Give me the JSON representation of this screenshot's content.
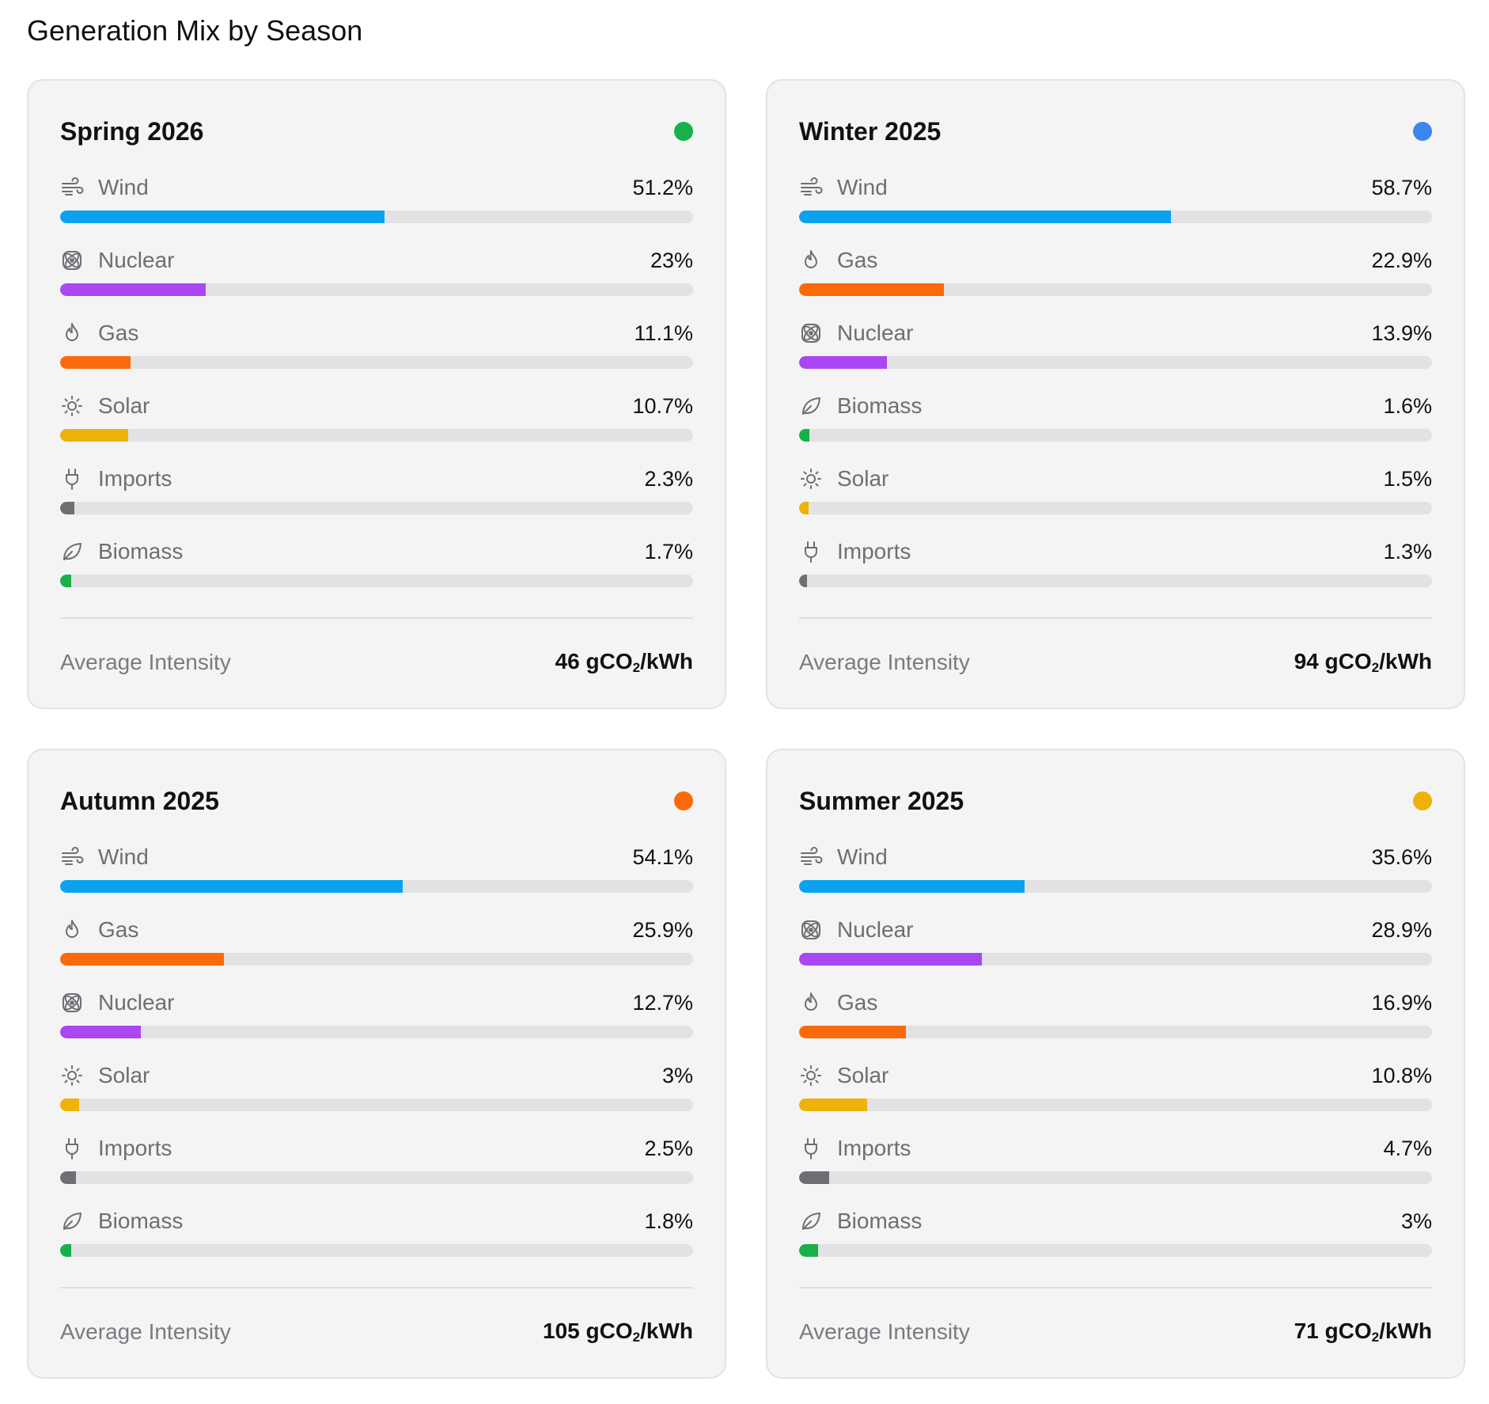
{
  "page": {
    "title": "Generation Mix by Season"
  },
  "colors": {
    "Wind": "#0aa2ee",
    "Nuclear": "#aa46f2",
    "Gas": "#fa6a0a",
    "Solar": "#eeb20a",
    "Imports": "#6f6f73",
    "Biomass": "#18b04a"
  },
  "icons": {
    "Wind": "wind-icon",
    "Nuclear": "atom-icon",
    "Gas": "flame-icon",
    "Solar": "sun-icon",
    "Imports": "plug-icon",
    "Biomass": "leaf-icon"
  },
  "footer_label": "Average Intensity",
  "chart_data": [
    {
      "type": "bar",
      "title": "Spring 2026",
      "dot_color": "#18b04a",
      "categories": [
        "Wind",
        "Nuclear",
        "Gas",
        "Solar",
        "Imports",
        "Biomass"
      ],
      "values": [
        51.2,
        23,
        11.1,
        10.7,
        2.3,
        1.7
      ],
      "value_labels": [
        "51.2%",
        "23%",
        "11.1%",
        "10.7%",
        "2.3%",
        "1.7%"
      ],
      "ylim": [
        0,
        100
      ],
      "average_intensity": {
        "value": "46",
        "unit": "gCO",
        "sub": "2",
        "suffix": "/kWh"
      }
    },
    {
      "type": "bar",
      "title": "Winter 2025",
      "dot_color": "#3d85ee",
      "categories": [
        "Wind",
        "Gas",
        "Nuclear",
        "Biomass",
        "Solar",
        "Imports"
      ],
      "values": [
        58.7,
        22.9,
        13.9,
        1.6,
        1.5,
        1.3
      ],
      "value_labels": [
        "58.7%",
        "22.9%",
        "13.9%",
        "1.6%",
        "1.5%",
        "1.3%"
      ],
      "ylim": [
        0,
        100
      ],
      "average_intensity": {
        "value": "94",
        "unit": "gCO",
        "sub": "2",
        "suffix": "/kWh"
      }
    },
    {
      "type": "bar",
      "title": "Autumn 2025",
      "dot_color": "#fa6a0a",
      "categories": [
        "Wind",
        "Gas",
        "Nuclear",
        "Solar",
        "Imports",
        "Biomass"
      ],
      "values": [
        54.1,
        25.9,
        12.7,
        3,
        2.5,
        1.8
      ],
      "value_labels": [
        "54.1%",
        "25.9%",
        "12.7%",
        "3%",
        "2.5%",
        "1.8%"
      ],
      "ylim": [
        0,
        100
      ],
      "average_intensity": {
        "value": "105",
        "unit": "gCO",
        "sub": "2",
        "suffix": "/kWh"
      }
    },
    {
      "type": "bar",
      "title": "Summer 2025",
      "dot_color": "#eeb20a",
      "categories": [
        "Wind",
        "Nuclear",
        "Gas",
        "Solar",
        "Imports",
        "Biomass"
      ],
      "values": [
        35.6,
        28.9,
        16.9,
        10.8,
        4.7,
        3
      ],
      "value_labels": [
        "35.6%",
        "28.9%",
        "16.9%",
        "10.8%",
        "4.7%",
        "3%"
      ],
      "ylim": [
        0,
        100
      ],
      "average_intensity": {
        "value": "71",
        "unit": "gCO",
        "sub": "2",
        "suffix": "/kWh"
      }
    }
  ]
}
